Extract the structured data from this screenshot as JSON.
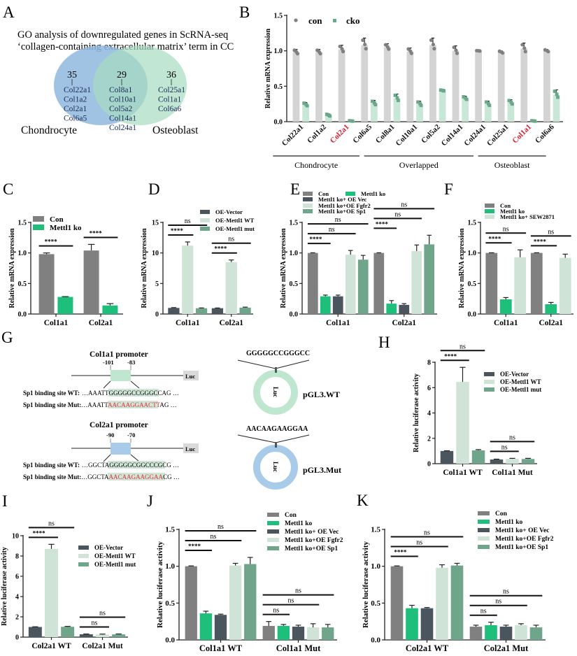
{
  "panel_labels": {
    "A": "A",
    "B": "B",
    "C": "C",
    "D": "D",
    "E": "E",
    "F": "F",
    "G": "G",
    "H": "H",
    "I": "I",
    "J": "J",
    "K": "K"
  },
  "venn": {
    "title_line1": "GO analysis of downregulated genes in ScRNA-seq",
    "title_line2": "‘collagen-containing extracellular matrix’ term in CC",
    "left": {
      "label": "Chondrocyte",
      "count": "35",
      "genes": [
        "Col22a1",
        "Col1a2",
        "Col2a1",
        "Col6a5"
      ],
      "color": "#8fb8de"
    },
    "overlap": {
      "count": "29",
      "genes": [
        "Col8a1",
        "Col10a1",
        "Col5a2",
        "Col14a1",
        "Col24a1"
      ]
    },
    "right": {
      "label": "Osteoblast",
      "count": "36",
      "genes": [
        "Col25a1",
        "Col1a1",
        "Col6a6"
      ],
      "color": "#a6dcc0"
    }
  },
  "diagram": {
    "col1a1": {
      "title": "Col1a1 promoter",
      "pos_start": "-101",
      "pos_end": "-83",
      "luc": "Luc",
      "box_color": "#bfe6cf",
      "wt": {
        "label": "Sp1 binding site WT:",
        "pre": "…AAATT",
        "site": "GGGGGCCGGGCC",
        "post": "AG …"
      },
      "mut": {
        "label": "Sp1 binding site Mut:",
        "pre": "…AAATT",
        "site": "AACAAGGAACTT",
        "post": "AG …"
      }
    },
    "col2a1": {
      "title": "Col2a1 promoter",
      "pos_start": "-90",
      "pos_end": "-70",
      "luc": "Luc",
      "box_color": "#a9cbea",
      "wt": {
        "label": "Sp1 binding site WT:",
        "pre": "…GGCTA",
        "site": "GGGGGCGGCCCG",
        "post": "CG …"
      },
      "mut": {
        "label": "Sp1 binding site Mut:",
        "pre": "…GGCTA",
        "site": "AACAAGAAGGAA",
        "post": "CG …"
      }
    },
    "plasmid_wt": {
      "insert": "GGGGGCCGGGCC",
      "inner": "Luc",
      "name": "pGL3.WT",
      "color": "#bfe6cf"
    },
    "plasmid_mut": {
      "insert": "AACAAGAAGGAA",
      "inner": "Luc",
      "name": "pGL3.Mut",
      "color": "#a9cbea"
    },
    "mut_color": "#e0303a",
    "highlight_color": "#cfe5d6"
  },
  "chart_data": [
    {
      "panel": "B",
      "type": "bar",
      "ylabel": "Relative mRNA expression",
      "ylim": [
        0,
        1.5
      ],
      "yticks": [
        "0.0",
        "0.5",
        "1.0",
        "1.5"
      ],
      "categories": [
        "Col22a1",
        "Col1a2",
        "Col2a1",
        "Col6a5",
        "Col8a1",
        "Col10a1",
        "Col5a2",
        "Col14a1",
        "Col24a1",
        "Col25a1",
        "Col1a1",
        "Col6a6"
      ],
      "highlight_categories": [
        "Col2a1",
        "Col1a1"
      ],
      "highlight_color": "#d42030",
      "category_groups": [
        {
          "label": "Chondrocyte",
          "count": 4
        },
        {
          "label": "Overlapped",
          "count": 5
        },
        {
          "label": "Osteoblast",
          "count": 3
        }
      ],
      "legend": "top-left",
      "points_shown": true,
      "series": [
        {
          "name": "con",
          "color": "#d4d4d4",
          "marker_color": "#808080",
          "marker": "circle",
          "values": [
            0.98,
            0.98,
            1.02,
            1.08,
            1.05,
            0.99,
            1.08,
            1.0,
            1.0,
            0.98,
            1.03,
            1.0
          ],
          "errors": [
            0.04,
            0.04,
            0.06,
            0.1,
            0.05,
            0.05,
            0.1,
            0.07,
            0.005,
            0.02,
            0.08,
            0.02
          ]
        },
        {
          "name": "cko",
          "color": "#c9e7d6",
          "marker_color": "#6aa88a",
          "marker": "square",
          "values": [
            0.24,
            0.09,
            0.01,
            0.26,
            0.33,
            0.25,
            0.44,
            0.33,
            0.25,
            0.27,
            0.01,
            0.38
          ],
          "errors": [
            0.03,
            0.02,
            0.005,
            0.04,
            0.06,
            0.04,
            0.01,
            0.03,
            0.04,
            0.04,
            0.005,
            0.07
          ]
        }
      ]
    },
    {
      "panel": "C",
      "type": "bar",
      "ylabel": "Relative mRNA expression",
      "ylim": [
        0,
        1.5
      ],
      "yticks": [
        "0.0",
        "0.5",
        "1.0",
        "1.5"
      ],
      "categories": [
        "Col1a1",
        "Col2a1"
      ],
      "legend": "top-left",
      "series": [
        {
          "name": "Con",
          "color": "#808080",
          "values": [
            0.98,
            1.04
          ],
          "errors": [
            0.02,
            0.1
          ]
        },
        {
          "name": "Mettl1 ko",
          "color": "#1dbf7a",
          "values": [
            0.28,
            0.14
          ],
          "errors": [
            0.005,
            0.03
          ]
        }
      ],
      "significance": [
        {
          "group": 0,
          "a": 0,
          "b": 1,
          "label": "****"
        },
        {
          "group": 1,
          "a": 0,
          "b": 1,
          "label": "****"
        }
      ]
    },
    {
      "panel": "D",
      "type": "bar",
      "ylabel": "Relative mRNA expression",
      "ylim": [
        0,
        15
      ],
      "yticks": [
        "0",
        "5",
        "10",
        "15"
      ],
      "categories": [
        "Col1a1",
        "Col2a1"
      ],
      "legend": "top-right",
      "series": [
        {
          "name": "OE-Vector",
          "color": "#4a555e",
          "values": [
            1.0,
            0.95
          ],
          "errors": [
            0.05,
            0.04
          ]
        },
        {
          "name": "OE-Mettl1 WT",
          "color": "#cfe3d6",
          "values": [
            11.2,
            8.5
          ],
          "errors": [
            0.6,
            0.35
          ]
        },
        {
          "name": "OE-Mettl1 mut",
          "color": "#6fa58a",
          "values": [
            0.95,
            1.05
          ],
          "errors": [
            0.05,
            0.08
          ]
        }
      ],
      "significance": [
        {
          "group": 0,
          "a": 0,
          "b": 1,
          "label": "****"
        },
        {
          "group": 0,
          "a": 0,
          "b": 2,
          "label": "ns"
        },
        {
          "group": 1,
          "a": 0,
          "b": 1,
          "label": "****"
        },
        {
          "group": 1,
          "a": 0,
          "b": 2,
          "label": "ns"
        }
      ]
    },
    {
      "panel": "E",
      "type": "bar",
      "ylabel": "Relative mRNA expression",
      "ylim": [
        0,
        1.5
      ],
      "yticks": [
        "0.0",
        "0.5",
        "1.0",
        "1.5"
      ],
      "categories": [
        "Col1a1",
        "Col2a1"
      ],
      "legend": "top-left",
      "series": [
        {
          "name": "Con",
          "color": "#808080",
          "values": [
            1.0,
            1.0
          ],
          "errors": [
            0.003,
            0.003
          ]
        },
        {
          "name": "Mettl1 ko",
          "color": "#1dbf7a",
          "values": [
            0.29,
            0.17
          ],
          "errors": [
            0.02,
            0.05
          ]
        },
        {
          "name": "Mettl1 ko+ OE Vec",
          "color": "#4a555e",
          "values": [
            0.29,
            0.15
          ],
          "errors": [
            0.02,
            0.02
          ]
        },
        {
          "name": "Mettl1 ko+OE Fgfr2",
          "color": "#cfe3d6",
          "values": [
            0.97,
            1.03
          ],
          "errors": [
            0.07,
            0.1
          ]
        },
        {
          "name": "Mettl1 ko+OE Sp1",
          "color": "#6fa58a",
          "values": [
            0.89,
            1.14
          ],
          "errors": [
            0.07,
            0.15
          ]
        }
      ],
      "significance": [
        {
          "group": 0,
          "a": 0,
          "b": 1,
          "label": "****"
        },
        {
          "group": 0,
          "a": 0,
          "b": 3,
          "label": "ns"
        },
        {
          "group": 0,
          "a": 0,
          "b": 4,
          "label": "ns"
        },
        {
          "group": 1,
          "a": 0,
          "b": 1,
          "label": "****"
        },
        {
          "group": 1,
          "a": 0,
          "b": 3,
          "label": "ns"
        },
        {
          "group": 1,
          "a": 0,
          "b": 4,
          "label": "ns"
        }
      ]
    },
    {
      "panel": "F",
      "type": "bar",
      "ylabel": "Relative mRNA expression",
      "ylim": [
        0,
        1.5
      ],
      "yticks": [
        "0.0",
        "0.5",
        "1.0",
        "1.5"
      ],
      "categories": [
        "Col1a1",
        "Col2a1"
      ],
      "legend": "top-left",
      "series": [
        {
          "name": "Con",
          "color": "#808080",
          "values": [
            1.0,
            1.0
          ],
          "errors": [
            0.003,
            0.003
          ]
        },
        {
          "name": "Mettl1 ko",
          "color": "#1dbf7a",
          "values": [
            0.24,
            0.16
          ],
          "errors": [
            0.03,
            0.03
          ]
        },
        {
          "name": "Mettl1 ko+ SEW2871",
          "color": "#cfe3d6",
          "values": [
            0.93,
            0.92
          ],
          "errors": [
            0.12,
            0.06
          ]
        }
      ],
      "significance": [
        {
          "group": 0,
          "a": 0,
          "b": 1,
          "label": "****"
        },
        {
          "group": 0,
          "a": 0,
          "b": 2,
          "label": "ns"
        },
        {
          "group": 1,
          "a": 0,
          "b": 1,
          "label": "****"
        },
        {
          "group": 1,
          "a": 0,
          "b": 2,
          "label": "ns"
        }
      ]
    },
    {
      "panel": "H",
      "type": "bar",
      "ylabel": "Relative luciferase activity",
      "ylim": [
        0,
        8
      ],
      "yticks": [
        "0",
        "2",
        "4",
        "6",
        "8"
      ],
      "categories": [
        "Col1a1 WT",
        "Col1a1 Mut"
      ],
      "legend": "right",
      "series": [
        {
          "name": "OE-Vector",
          "color": "#4a555e",
          "values": [
            1.0,
            0.33
          ],
          "errors": [
            0.02,
            0.03
          ]
        },
        {
          "name": "OE-Mettl1 WT",
          "color": "#cfe3d6",
          "values": [
            6.45,
            0.38
          ],
          "errors": [
            1.15,
            0.04
          ]
        },
        {
          "name": "OE-Mettl1 mut",
          "color": "#6fa58a",
          "values": [
            1.05,
            0.37
          ],
          "errors": [
            0.06,
            0.05
          ]
        }
      ],
      "significance": [
        {
          "group": 0,
          "a": 0,
          "b": 1,
          "label": "****"
        },
        {
          "group": 0,
          "a": 0,
          "b": 2,
          "label": "ns"
        },
        {
          "group": 1,
          "a": 0,
          "b": 1,
          "label": "ns"
        },
        {
          "group": 1,
          "a": 0,
          "b": 2,
          "label": "ns"
        }
      ]
    },
    {
      "panel": "I",
      "type": "bar",
      "ylabel": "Relative luciferase activity",
      "ylim": [
        0,
        10
      ],
      "yticks": [
        "0",
        "2",
        "4",
        "6",
        "8",
        "10"
      ],
      "categories": [
        "Col2a1 WT",
        "Col2a1 Mut"
      ],
      "legend": "right",
      "series": [
        {
          "name": "OE-Vector",
          "color": "#4a555e",
          "values": [
            1.0,
            0.28
          ],
          "errors": [
            0.02,
            0.03
          ]
        },
        {
          "name": "OE-Mettl1 WT",
          "color": "#cfe3d6",
          "values": [
            8.7,
            0.25
          ],
          "errors": [
            0.45,
            0.05
          ]
        },
        {
          "name": "OE-Mettl1 mut",
          "color": "#6fa58a",
          "values": [
            1.02,
            0.27
          ],
          "errors": [
            0.04,
            0.04
          ]
        }
      ],
      "significance": [
        {
          "group": 0,
          "a": 0,
          "b": 1,
          "label": "****"
        },
        {
          "group": 0,
          "a": 0,
          "b": 2,
          "label": "ns"
        },
        {
          "group": 1,
          "a": 0,
          "b": 1,
          "label": "ns"
        },
        {
          "group": 1,
          "a": 0,
          "b": 2,
          "label": "ns"
        }
      ]
    },
    {
      "panel": "J",
      "type": "bar",
      "ylabel": "Relative luciferase activity",
      "ylim": [
        0,
        1.5
      ],
      "yticks": [
        "0.0",
        "0.5",
        "1.0",
        "1.5"
      ],
      "categories": [
        "Col1a1 WT",
        "Col1a1 Mut"
      ],
      "legend": "top-right",
      "series": [
        {
          "name": "Con",
          "color": "#808080",
          "values": [
            1.0,
            0.19
          ],
          "errors": [
            0.005,
            0.06
          ]
        },
        {
          "name": "Mettl1 ko",
          "color": "#1dbf7a",
          "values": [
            0.36,
            0.19
          ],
          "errors": [
            0.03,
            0.02
          ]
        },
        {
          "name": "Mettl1 ko+ OE Vec",
          "color": "#4a555e",
          "values": [
            0.34,
            0.18
          ],
          "errors": [
            0.01,
            0.02
          ]
        },
        {
          "name": "Mettl1 ko+OE Fgfr2",
          "color": "#cfe3d6",
          "values": [
            1.01,
            0.17
          ],
          "errors": [
            0.03,
            0.05
          ]
        },
        {
          "name": "Mettl1 ko+OE Sp1",
          "color": "#6fa58a",
          "values": [
            1.03,
            0.17
          ],
          "errors": [
            0.09,
            0.04
          ]
        }
      ],
      "significance": [
        {
          "group": 0,
          "a": 0,
          "b": 1,
          "label": "****"
        },
        {
          "group": 0,
          "a": 0,
          "b": 3,
          "label": "ns"
        },
        {
          "group": 0,
          "a": 0,
          "b": 4,
          "label": "ns"
        },
        {
          "group": 1,
          "a": 0,
          "b": 1,
          "label": "ns"
        },
        {
          "group": 1,
          "a": 0,
          "b": 3,
          "label": "ns"
        },
        {
          "group": 1,
          "a": 0,
          "b": 4,
          "label": "ns"
        }
      ]
    },
    {
      "panel": "K",
      "type": "bar",
      "ylabel": "Relative luciferase activity",
      "ylim": [
        0,
        1.5
      ],
      "yticks": [
        "0.0",
        "0.5",
        "1.0",
        "1.5"
      ],
      "categories": [
        "Col2a1 WT",
        "Col2a1 Mut"
      ],
      "legend": "top-right",
      "series": [
        {
          "name": "Con",
          "color": "#808080",
          "values": [
            1.0,
            0.18
          ],
          "errors": [
            0.005,
            0.02
          ]
        },
        {
          "name": "Mettl1 ko",
          "color": "#1dbf7a",
          "values": [
            0.43,
            0.2
          ],
          "errors": [
            0.04,
            0.04
          ]
        },
        {
          "name": "Mettl1 ko+ OE Vec",
          "color": "#4a555e",
          "values": [
            0.43,
            0.18
          ],
          "errors": [
            0.01,
            0.02
          ]
        },
        {
          "name": "Mettl1 ko+OE Fgfr2",
          "color": "#cfe3d6",
          "values": [
            0.98,
            0.2
          ],
          "errors": [
            0.04,
            0.02
          ]
        },
        {
          "name": "Mettl1 ko+OE Sp1",
          "color": "#6fa58a",
          "values": [
            1.01,
            0.17
          ],
          "errors": [
            0.03,
            0.03
          ]
        }
      ],
      "significance": [
        {
          "group": 0,
          "a": 0,
          "b": 1,
          "label": "****"
        },
        {
          "group": 0,
          "a": 0,
          "b": 3,
          "label": "ns"
        },
        {
          "group": 0,
          "a": 0,
          "b": 4,
          "label": "ns"
        },
        {
          "group": 1,
          "a": 0,
          "b": 1,
          "label": "ns"
        },
        {
          "group": 1,
          "a": 0,
          "b": 3,
          "label": "ns"
        },
        {
          "group": 1,
          "a": 0,
          "b": 4,
          "label": "ns"
        }
      ]
    }
  ]
}
